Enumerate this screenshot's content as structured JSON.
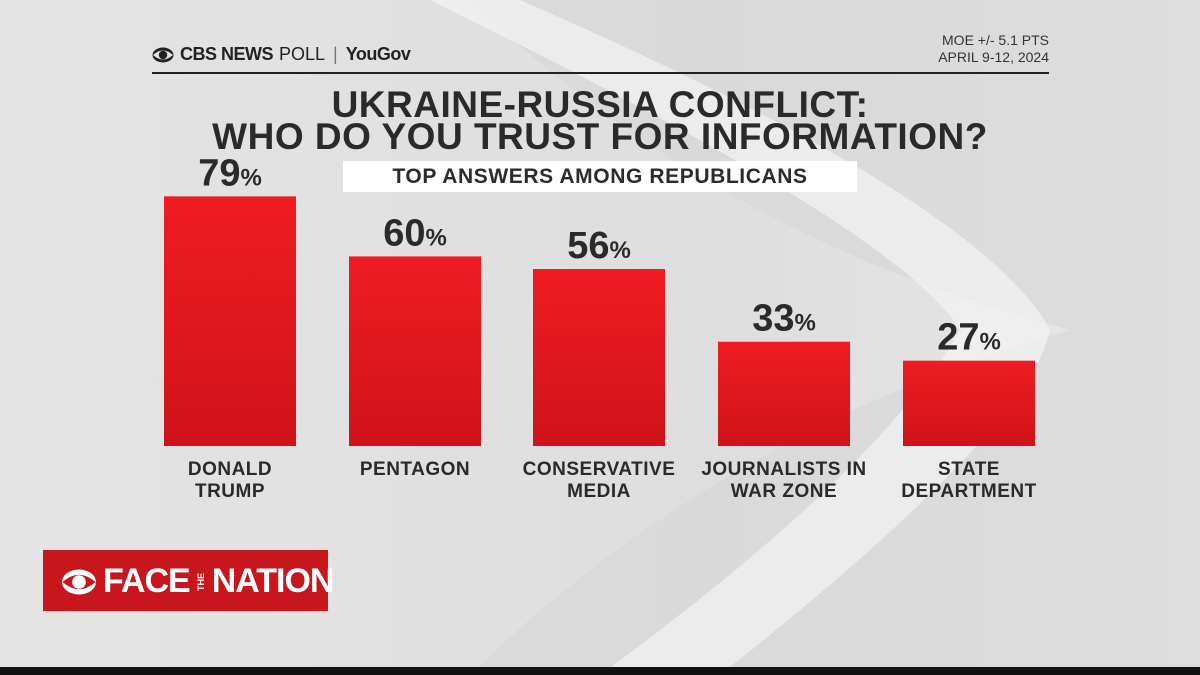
{
  "header": {
    "brand_cbs": "CBS NEWS",
    "brand_poll": "POLL",
    "brand_partner": "YouGov",
    "moe": "MOE +/- 5.1 PTS",
    "date": "APRIL 9-12, 2024"
  },
  "chart_data": {
    "type": "bar",
    "title_line1": "UKRAINE-RUSSIA CONFLICT:",
    "title_line2": "WHO DO YOU TRUST FOR INFORMATION?",
    "subtitle": "TOP ANSWERS AMONG REPUBLICANS",
    "categories": [
      [
        "DONALD",
        "TRUMP"
      ],
      [
        "PENTAGON"
      ],
      [
        "CONSERVATIVE",
        "MEDIA"
      ],
      [
        "JOURNALISTS IN",
        "WAR ZONE"
      ],
      [
        "STATE",
        "DEPARTMENT"
      ]
    ],
    "values": [
      79,
      60,
      56,
      33,
      27
    ],
    "value_suffix": "%",
    "ylim": [
      0,
      100
    ],
    "grid": false,
    "bar_color": "#e3141b"
  },
  "logo": {
    "face": "FACE",
    "the": "THE",
    "nation": "NATION"
  },
  "colors": {
    "logo_red": "#c8161d",
    "text_dark": "#2a2a2a"
  }
}
